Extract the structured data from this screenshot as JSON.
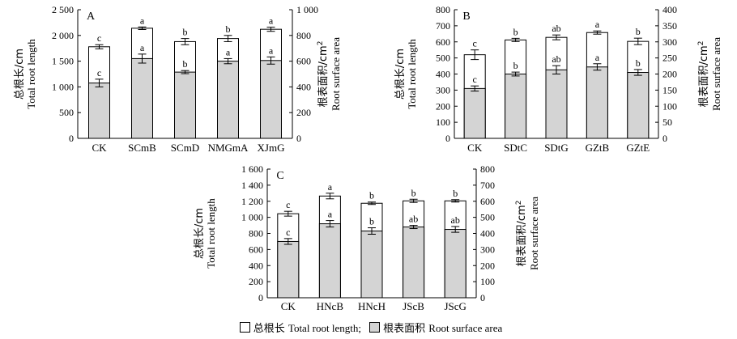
{
  "legend": {
    "total_cn": "总根长",
    "total_en": "Total root length;",
    "area_cn": "根表面积",
    "area_en": "Root surface area"
  },
  "colors": {
    "total_bar": "#ffffff",
    "area_bar": "#d4d4d4"
  },
  "chart_data": [
    {
      "type": "bar",
      "panel": "A",
      "categories": [
        "CK",
        "SCmB",
        "SCmD",
        "NMGmA",
        "XJmG"
      ],
      "left_axis": {
        "label_cn": "总根长/cm",
        "label_en": "Total root length",
        "ylim": [
          0,
          2500
        ],
        "ticks": [
          0,
          500,
          1000,
          1500,
          2000,
          2500
        ],
        "tick_labels": [
          "0",
          "500",
          "1 000",
          "1 500",
          "2 000",
          "2 500"
        ]
      },
      "right_axis": {
        "label_cn": "根表面积/cm",
        "label_sup": "2",
        "label_en": "Root surface area",
        "ylim": [
          0,
          1000
        ],
        "ticks": [
          0,
          200,
          400,
          600,
          800,
          1000
        ],
        "tick_labels": [
          "0",
          "200",
          "400",
          "600",
          "800",
          "1 000"
        ]
      },
      "series": [
        {
          "name": "总根长 Total root length",
          "axis": "left",
          "values": [
            1780,
            2140,
            1880,
            1940,
            2120
          ],
          "errors": [
            40,
            25,
            60,
            60,
            40
          ],
          "letters": [
            "c",
            "a",
            "b",
            "b",
            "a"
          ]
        },
        {
          "name": "根表面积 Root surface area",
          "axis": "right",
          "values": [
            430,
            620,
            515,
            600,
            605
          ],
          "errors": [
            30,
            35,
            12,
            20,
            28
          ],
          "letters": [
            "c",
            "a",
            "b",
            "a",
            "a"
          ]
        }
      ]
    },
    {
      "type": "bar",
      "panel": "B",
      "categories": [
        "CK",
        "SDtC",
        "SDtG",
        "GZtB",
        "GZtE"
      ],
      "left_axis": {
        "label_cn": "总根长/cm",
        "label_en": "Total root length",
        "ylim": [
          0,
          800
        ],
        "ticks": [
          0,
          100,
          200,
          300,
          400,
          500,
          600,
          700,
          800
        ],
        "tick_labels": [
          "0",
          "100",
          "200",
          "300",
          "400",
          "500",
          "600",
          "700",
          "800"
        ]
      },
      "right_axis": {
        "label_cn": "根表面积/cm",
        "label_sup": "2",
        "label_en": "Root surface area",
        "ylim": [
          0,
          400
        ],
        "ticks": [
          0,
          50,
          100,
          150,
          200,
          250,
          300,
          350,
          400
        ],
        "tick_labels": [
          "0",
          "50",
          "100",
          "150",
          "200",
          "250",
          "300",
          "350",
          "400"
        ]
      },
      "series": [
        {
          "name": "总根长 Total root length",
          "axis": "left",
          "values": [
            520,
            612,
            628,
            658,
            603
          ],
          "errors": [
            30,
            10,
            15,
            10,
            20
          ],
          "letters": [
            "c",
            "b",
            "ab",
            "a",
            "b"
          ]
        },
        {
          "name": "根表面积 Root surface area",
          "axis": "right",
          "values": [
            155,
            200,
            213,
            222,
            205
          ],
          "errors": [
            8,
            6,
            13,
            10,
            9
          ],
          "letters": [
            "c",
            "b",
            "ab",
            "a",
            "b"
          ]
        }
      ]
    },
    {
      "type": "bar",
      "panel": "C",
      "categories": [
        "CK",
        "HNcB",
        "HNcH",
        "JScB",
        "JScG"
      ],
      "left_axis": {
        "label_cn": "总根长/cm",
        "label_en": "Total root length",
        "ylim": [
          0,
          1600
        ],
        "ticks": [
          0,
          200,
          400,
          600,
          800,
          1000,
          1200,
          1400,
          1600
        ],
        "tick_labels": [
          "0",
          "200",
          "400",
          "600",
          "800",
          "1 000",
          "1 200",
          "1 400",
          "1 600"
        ]
      },
      "right_axis": {
        "label_cn": "根表面积/cm",
        "label_sup": "2",
        "label_en": "Root surface area",
        "ylim": [
          0,
          800
        ],
        "ticks": [
          0,
          100,
          200,
          300,
          400,
          500,
          600,
          700,
          800
        ],
        "tick_labels": [
          "0",
          "100",
          "200",
          "300",
          "400",
          "500",
          "600",
          "700",
          "800"
        ]
      },
      "series": [
        {
          "name": "总根长 Total root length",
          "axis": "left",
          "values": [
            1045,
            1265,
            1175,
            1205,
            1205
          ],
          "errors": [
            30,
            35,
            15,
            20,
            15
          ],
          "letters": [
            "c",
            "a",
            "b",
            "b",
            "b"
          ]
        },
        {
          "name": "根表面积 Root surface area",
          "axis": "right",
          "values": [
            350,
            460,
            415,
            440,
            425
          ],
          "errors": [
            18,
            20,
            20,
            10,
            18
          ],
          "letters": [
            "c",
            "a",
            "b",
            "ab",
            "ab"
          ]
        }
      ]
    }
  ]
}
